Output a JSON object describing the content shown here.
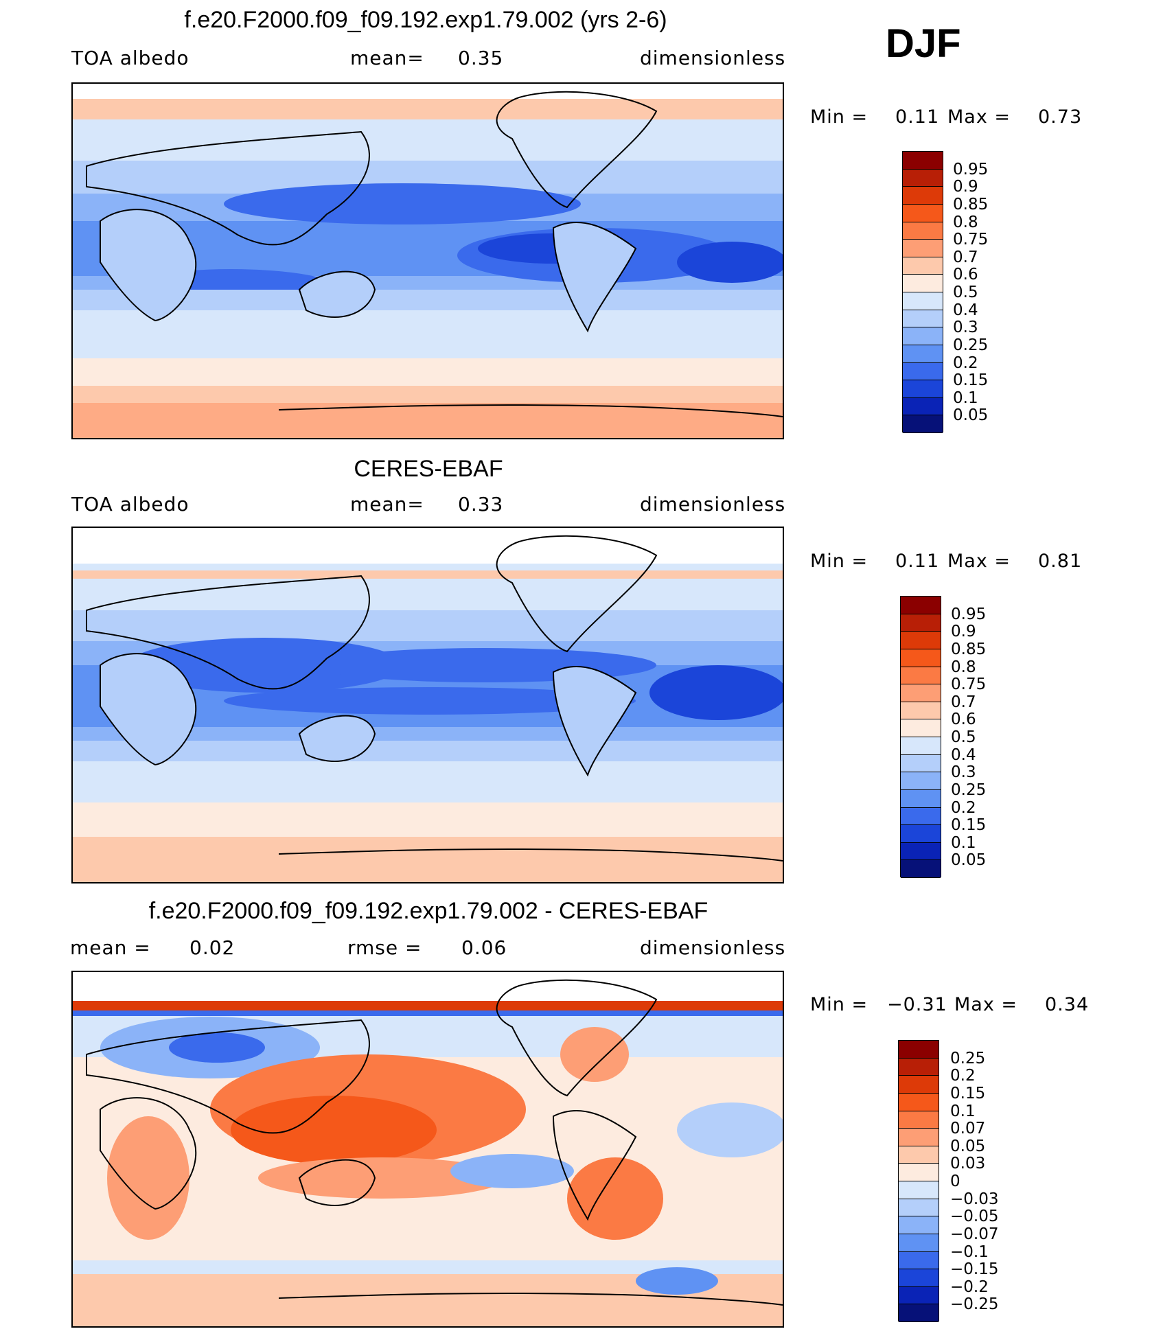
{
  "season": "DJF",
  "panels": [
    {
      "title": "f.e20.F2000.f09_f09.192.exp1.79.002 (yrs 2-6)",
      "left_label": "TOA albedo",
      "mean_label": "mean=",
      "mean_value": "0.35",
      "units": "dimensionless",
      "min_label": "Min =",
      "min_value": "0.11",
      "max_label": "Max =",
      "max_value": "0.73",
      "levels": [
        "0.95",
        "0.9",
        "0.85",
        "0.8",
        "0.75",
        "0.7",
        "0.6",
        "0.5",
        "0.4",
        "0.3",
        "0.25",
        "0.2",
        "0.15",
        "0.1",
        "0.05"
      ]
    },
    {
      "title": "CERES-EBAF",
      "left_label": "TOA albedo",
      "mean_label": "mean=",
      "mean_value": "0.33",
      "units": "dimensionless",
      "min_label": "Min =",
      "min_value": "0.11",
      "max_label": "Max =",
      "max_value": "0.81",
      "levels": [
        "0.95",
        "0.9",
        "0.85",
        "0.8",
        "0.75",
        "0.7",
        "0.6",
        "0.5",
        "0.4",
        "0.3",
        "0.25",
        "0.2",
        "0.15",
        "0.1",
        "0.05"
      ]
    },
    {
      "title": "f.e20.F2000.f09_f09.192.exp1.79.002 - CERES-EBAF",
      "left_label": "mean =",
      "left_value": "0.02",
      "mid_label": "rmse =",
      "mid_value": "0.06",
      "units": "dimensionless",
      "min_label": "Min =",
      "min_value": "−0.31",
      "max_label": "Max =",
      "max_value": "0.34",
      "levels": [
        "0.25",
        "0.2",
        "0.15",
        "0.1",
        "0.07",
        "0.05",
        "0.03",
        "0",
        "−0.03",
        "−0.05",
        "−0.07",
        "−0.1",
        "−0.15",
        "−0.2",
        "−0.25"
      ]
    }
  ],
  "colorbar_colors": [
    "#8b0000",
    "#b81f06",
    "#dd3a08",
    "#f5581a",
    "#fb7a44",
    "#fd9e75",
    "#fdc9ac",
    "#fdebdf",
    "#d7e7fb",
    "#b4cffa",
    "#8bb3f8",
    "#5f92f3",
    "#3a6aec",
    "#1b45d9",
    "#0a23b6",
    "#061178"
  ]
}
